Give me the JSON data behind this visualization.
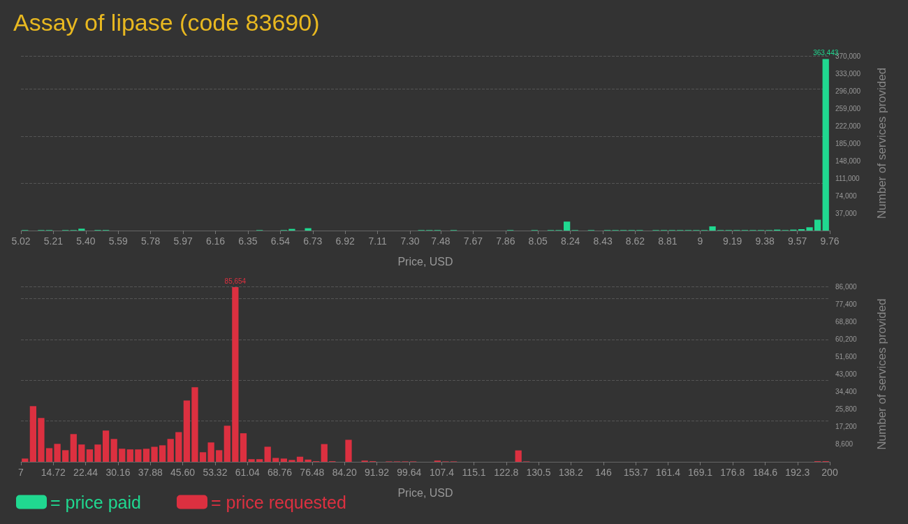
{
  "chart_data": [
    {
      "type": "histogram",
      "title": "Assay of lipase (code 83690)",
      "xlabel": "Price, USD",
      "ylabel": "Number of services provided",
      "grid": "y",
      "legend": "bottom left",
      "bins": [
        5.02,
        5.0674,
        5.1148,
        5.1622,
        5.2096,
        5.257,
        5.3044,
        5.3518,
        5.3992,
        5.4466,
        5.494,
        5.5414,
        5.5888,
        5.6362,
        5.6836,
        5.731,
        5.7784,
        5.8258,
        5.8732,
        5.9206,
        5.968,
        6.0154,
        6.0628,
        6.1102,
        6.1576,
        6.205,
        6.2524,
        6.2998,
        6.3472,
        6.3946,
        6.442,
        6.4894,
        6.5368,
        6.5842,
        6.6316,
        6.679,
        6.7264,
        6.7738,
        6.8212,
        6.8686,
        6.916,
        6.9634,
        7.0108,
        7.0582,
        7.1056,
        7.153,
        7.2004,
        7.2478,
        7.2952,
        7.3426,
        7.39,
        7.4374,
        7.4848,
        7.5322,
        7.5796,
        7.627,
        7.6744,
        7.7218,
        7.7692,
        7.8166,
        7.864,
        7.9114,
        7.9588,
        8.0062,
        8.0536,
        8.101,
        8.1484,
        8.1958,
        8.2432,
        8.2906,
        8.338,
        8.3854,
        8.4328,
        8.4802,
        8.5276,
        8.575,
        8.6224,
        8.6698,
        8.7172,
        8.7646,
        8.812,
        8.8594,
        8.9068,
        8.9542,
        9.0016,
        9.049,
        9.0964,
        9.1438,
        9.1912,
        9.2386,
        9.286,
        9.3334,
        9.3808,
        9.4282,
        9.4756,
        9.523,
        9.5704,
        9.6178,
        9.6652,
        9.7126,
        9.76
      ],
      "series": [
        {
          "name": "= price paid",
          "color": "#20d890",
          "values": [
            1000,
            0,
            1000,
            1000,
            0,
            1000,
            1000,
            4000,
            0,
            1000,
            1000,
            0,
            0,
            0,
            0,
            0,
            0,
            0,
            0,
            0,
            0,
            0,
            0,
            0,
            0,
            0,
            0,
            0,
            0,
            1000,
            0,
            0,
            1000,
            3500,
            0,
            5000,
            0,
            0,
            0,
            0,
            0,
            0,
            0,
            0,
            0,
            0,
            0,
            0,
            0,
            1000,
            1000,
            1000,
            0,
            1000,
            0,
            0,
            0,
            0,
            0,
            0,
            1000,
            0,
            0,
            1000,
            0,
            1000,
            1000,
            19000,
            1000,
            0,
            1000,
            0,
            1000,
            1000,
            1000,
            1000,
            1000,
            0,
            1000,
            1000,
            1000,
            1000,
            1000,
            1000,
            1000,
            9000,
            1000,
            1000,
            1000,
            1000,
            1000,
            1000,
            1000,
            2000,
            1000,
            2000,
            3000,
            7000,
            23000,
            363443
          ],
          "value_labels": [
            null,
            null,
            null,
            null,
            null,
            null,
            null,
            null,
            null,
            null,
            null,
            null,
            null,
            null,
            null,
            null,
            null,
            null,
            null,
            null,
            null,
            null,
            null,
            null,
            null,
            null,
            null,
            null,
            null,
            null,
            null,
            null,
            null,
            null,
            null,
            null,
            null,
            null,
            null,
            null,
            null,
            null,
            null,
            null,
            null,
            null,
            null,
            null,
            null,
            null,
            null,
            null,
            null,
            null,
            null,
            null,
            null,
            null,
            null,
            null,
            null,
            null,
            null,
            null,
            null,
            null,
            null,
            null,
            null,
            null,
            null,
            null,
            null,
            null,
            null,
            null,
            null,
            null,
            null,
            null,
            null,
            null,
            null,
            null,
            null,
            null,
            null,
            null,
            null,
            null,
            null,
            null,
            null,
            null,
            null,
            null,
            null,
            null,
            null,
            "363,443"
          ]
        }
      ],
      "xlim": [
        5.02,
        9.76
      ],
      "xticks": [
        5.02,
        {
          "value": 5.21,
          "label": "5.21"
        },
        {
          "value": 5.4,
          "label": "5.40"
        },
        5.59,
        5.78,
        5.97,
        6.16,
        6.35,
        6.54,
        6.73,
        6.92,
        7.11,
        {
          "value": 7.3,
          "label": "7.30"
        },
        7.48,
        7.67,
        7.86,
        8.05,
        8.24,
        8.43,
        8.62,
        8.81,
        9,
        9.19,
        9.38,
        9.57,
        9.76
      ],
      "ylim": [
        0,
        370000
      ],
      "yticks": [
        {
          "value": 37000,
          "label": "37,000"
        },
        {
          "value": 74000,
          "label": "74,000"
        },
        {
          "value": 111000,
          "label": "111,000"
        },
        {
          "value": 148000,
          "label": "148,000"
        },
        {
          "value": 185000,
          "label": "185,000"
        },
        {
          "value": 222000,
          "label": "222,000"
        },
        {
          "value": 259000,
          "label": "259,000"
        },
        {
          "value": 296000,
          "label": "296,000"
        },
        {
          "value": 333000,
          "label": "333,000"
        },
        {
          "value": 370000,
          "label": "370,000"
        }
      ]
    },
    {
      "type": "histogram",
      "xlabel": "Price, USD",
      "ylabel": "Number of services provided",
      "grid": "y",
      "legend": "bottom left",
      "bins": [
        7,
        8.93,
        10.86,
        12.79,
        14.72,
        16.65,
        18.58,
        20.51,
        22.44,
        24.37,
        26.3,
        28.23,
        30.16,
        32.09,
        34.02,
        35.95,
        37.88,
        39.81,
        41.74,
        43.67,
        45.6,
        47.53,
        49.46,
        51.39,
        53.32,
        55.25,
        57.18,
        59.11,
        61.04,
        62.97,
        64.9,
        66.83,
        68.76,
        70.69,
        72.62,
        74.55,
        76.48,
        78.41,
        80.34,
        82.27,
        84.2,
        86.13,
        88.06,
        89.99,
        91.92,
        93.85,
        95.78,
        97.71,
        99.64,
        101.57,
        103.5,
        105.43,
        107.36,
        109.29,
        111.22,
        113.15,
        115.08,
        117.01,
        118.94,
        120.87,
        122.8,
        124.73,
        126.66,
        128.59,
        130.52,
        132.45,
        134.38,
        136.31,
        138.24,
        140.17,
        142.1,
        144.03,
        145.96,
        147.89,
        149.82,
        151.75,
        153.68,
        155.61,
        157.54,
        159.47,
        161.4,
        163.33,
        165.26,
        167.19,
        169.12,
        171.05,
        172.98,
        174.91,
        176.84,
        178.77,
        180.7,
        182.63,
        184.56,
        186.49,
        188.42,
        190.35,
        192.28,
        194.21,
        196.14,
        198.07,
        200
      ],
      "series": [
        {
          "name": "= price requested",
          "color": "#dc3040",
          "values": [
            1600,
            27300,
            21500,
            6700,
            8800,
            5700,
            13600,
            8500,
            6100,
            8500,
            15300,
            11200,
            6400,
            6100,
            6100,
            6400,
            7400,
            8100,
            11200,
            14600,
            30100,
            36600,
            4700,
            9500,
            5700,
            17700,
            85654,
            14000,
            1300,
            1300,
            7400,
            1900,
            1600,
            900,
            2500,
            1100,
            300,
            8700,
            300,
            0,
            10800,
            0,
            600,
            300,
            0,
            200,
            200,
            200,
            200,
            0,
            0,
            600,
            200,
            200,
            0,
            0,
            0,
            0,
            0,
            0,
            0,
            5600,
            200,
            0,
            0,
            0,
            0,
            0,
            0,
            0,
            0,
            0,
            0,
            0,
            0,
            0,
            0,
            0,
            0,
            0,
            0,
            0,
            0,
            0,
            0,
            0,
            0,
            0,
            0,
            0,
            0,
            0,
            0,
            0,
            0,
            0,
            0,
            0,
            300,
            300
          ],
          "value_labels": [
            null,
            null,
            null,
            null,
            null,
            null,
            null,
            null,
            null,
            null,
            null,
            null,
            null,
            null,
            null,
            null,
            null,
            null,
            null,
            null,
            null,
            null,
            null,
            null,
            null,
            null,
            "85,654",
            null,
            null,
            null,
            null,
            null,
            null,
            null,
            null,
            null,
            null,
            null,
            null,
            null,
            null,
            null,
            null,
            null,
            null,
            null,
            null,
            null,
            null,
            null,
            null,
            null,
            null,
            null,
            null,
            null,
            null,
            null,
            null,
            null,
            null,
            null,
            null,
            null,
            null,
            null,
            null,
            null,
            null,
            null,
            null,
            null,
            null,
            null,
            null,
            null,
            null,
            null,
            null,
            null,
            null,
            null,
            null,
            null,
            null,
            null,
            null,
            null,
            null,
            null,
            null,
            null,
            null,
            null,
            null,
            null,
            null,
            null,
            null,
            null
          ]
        }
      ],
      "xlim": [
        7,
        200
      ],
      "xticks": [
        7,
        14.72,
        22.44,
        30.16,
        37.88,
        {
          "value": 45.6,
          "label": "45.60"
        },
        53.32,
        61.04,
        68.76,
        76.48,
        {
          "value": 84.2,
          "label": "84.20"
        },
        91.92,
        99.64,
        107.4,
        115.1,
        122.8,
        130.5,
        138.2,
        146,
        153.7,
        161.4,
        169.1,
        176.8,
        184.6,
        192.3,
        200
      ],
      "ylim": [
        0,
        86000
      ],
      "yticks": [
        {
          "value": 8600,
          "label": "8,600"
        },
        {
          "value": 17200,
          "label": "17,200"
        },
        {
          "value": 25800,
          "label": "25,800"
        },
        {
          "value": 34400,
          "label": "34,400"
        },
        {
          "value": 43000,
          "label": "43,000"
        },
        {
          "value": 51600,
          "label": "51,600"
        },
        {
          "value": 60200,
          "label": "60,200"
        },
        {
          "value": 68800,
          "label": "68,800"
        },
        {
          "value": 77400,
          "label": "77,400"
        },
        {
          "value": 86000,
          "label": "86,000"
        }
      ]
    }
  ]
}
